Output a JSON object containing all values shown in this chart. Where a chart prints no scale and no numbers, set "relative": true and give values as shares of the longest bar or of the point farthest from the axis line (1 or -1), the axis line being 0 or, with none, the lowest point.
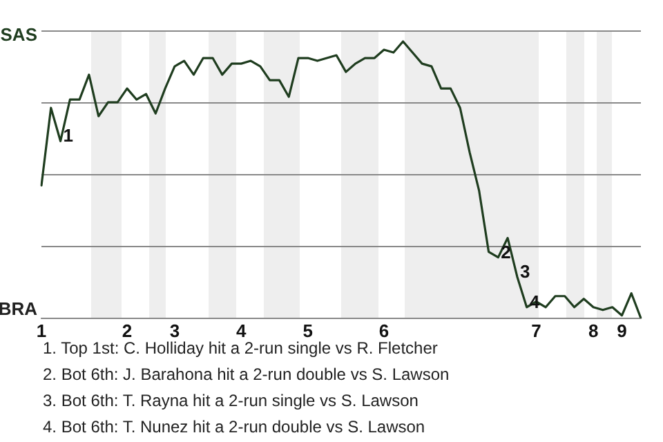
{
  "chart_data": {
    "type": "line",
    "relative": true,
    "categories": [
      "1",
      null,
      null,
      null,
      null,
      null,
      null,
      null,
      null,
      "2",
      null,
      null,
      null,
      null,
      "3",
      null,
      null,
      null,
      null,
      null,
      null,
      "4",
      null,
      null,
      null,
      null,
      null,
      null,
      "5",
      null,
      null,
      null,
      null,
      null,
      null,
      null,
      "6",
      null,
      null,
      null,
      null,
      null,
      null,
      null,
      null,
      null,
      null,
      null,
      null,
      null,
      null,
      null,
      "7",
      null,
      null,
      null,
      null,
      null,
      "8",
      null,
      null,
      "9",
      null,
      null
    ],
    "series": [
      {
        "color": "#1f3d1f",
        "values": [
          0.48,
          0.76,
          0.64,
          0.79,
          0.79,
          0.88,
          0.73,
          0.78,
          0.78,
          0.83,
          0.79,
          0.81,
          0.74,
          0.83,
          0.91,
          0.93,
          0.88,
          0.94,
          0.94,
          0.88,
          0.92,
          0.92,
          0.93,
          0.91,
          0.86,
          0.86,
          0.8,
          0.94,
          0.94,
          0.93,
          0.94,
          0.95,
          0.89,
          0.92,
          0.94,
          0.94,
          0.97,
          0.96,
          1,
          0.96,
          0.92,
          0.91,
          0.83,
          0.83,
          0.76,
          0.6,
          0.46,
          0.24,
          0.22,
          0.29,
          0.15,
          0.04,
          0.06,
          0.04,
          0.08,
          0.08,
          0.04,
          0.07,
          0.04,
          0.03,
          0.04,
          0.01,
          0.09,
          0
        ]
      }
    ],
    "grid": "y",
    "legend": false,
    "marker": "none",
    "line_style": "solid",
    "annotations": [
      "SAS",
      "BRA",
      {
        "text": "1",
        "y": 0.64
      },
      {
        "text": "2",
        "y": 0.22
      },
      {
        "text": "3",
        "y": 0.15
      },
      {
        "text": "4",
        "y": 0.04
      },
      "1. Top 1st: C. Holliday hit a 2-run single vs R. Fletcher",
      "2. Bot 6th: J. Barahona hit a 2-run double vs S. Lawson",
      "3. Bot 6th: T. Rayna hit a 2-run single vs S. Lawson",
      "4. Bot 6th: T. Nunez hit a 2-run double vs S. Lawson"
    ]
  }
}
